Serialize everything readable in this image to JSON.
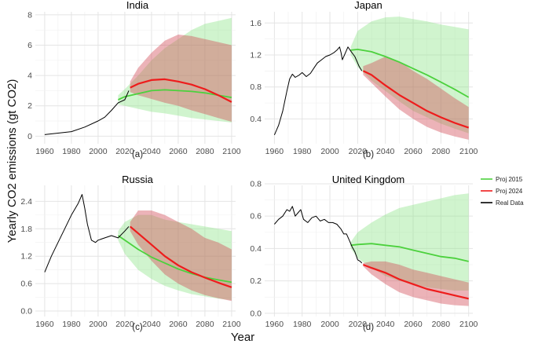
{
  "figure": {
    "ylabel": "Yearly CO2 emissions (gt CO2)",
    "xlabel": "Year",
    "legend": [
      {
        "label": "Proj 2015",
        "color": "#4cd13d"
      },
      {
        "label": "Proj 2024",
        "color": "#ee1c1c"
      },
      {
        "label": "Real Data",
        "color": "#000000"
      }
    ],
    "colors": {
      "band2015": "#cdf2c8",
      "band2024": "#b07a66",
      "band2024_only": "#f2aab2",
      "grid": "#e4e4e4"
    }
  },
  "chart_data": [
    {
      "type": "line",
      "title": "India",
      "caption": "(a)",
      "xlim": [
        1953,
        2103
      ],
      "ylim": [
        -0.5,
        8.2
      ],
      "xticks": [
        "1960",
        "1980",
        "2000",
        "2020",
        "2040",
        "2060",
        "2080",
        "2100"
      ],
      "yticks": [
        "0",
        "2",
        "4",
        "6",
        "8"
      ],
      "series": [
        {
          "name": "Real Data",
          "x": [
            1960,
            1970,
            1980,
            1990,
            2000,
            2005,
            2010,
            2015,
            2020,
            2023
          ],
          "y": [
            0.1,
            0.2,
            0.3,
            0.6,
            1.0,
            1.25,
            1.7,
            2.2,
            2.4,
            3.0
          ]
        },
        {
          "name": "Proj 2015",
          "x": [
            2015,
            2020,
            2030,
            2040,
            2050,
            2060,
            2070,
            2080,
            2090,
            2100
          ],
          "y": [
            2.4,
            2.6,
            2.8,
            3.0,
            3.05,
            3.0,
            2.95,
            2.85,
            2.7,
            2.55
          ],
          "lower": [
            2.1,
            2.0,
            1.8,
            1.6,
            1.5,
            1.35,
            1.2,
            1.1,
            1.0,
            0.9
          ],
          "upper": [
            2.7,
            3.1,
            4.0,
            5.0,
            5.8,
            6.4,
            7.0,
            7.4,
            7.6,
            7.8
          ]
        },
        {
          "name": "Proj 2024",
          "x": [
            2024,
            2030,
            2040,
            2050,
            2060,
            2070,
            2080,
            2090,
            2100
          ],
          "y": [
            3.2,
            3.45,
            3.7,
            3.75,
            3.6,
            3.4,
            3.1,
            2.7,
            2.25
          ],
          "lower": [
            2.9,
            2.7,
            2.45,
            2.2,
            2.0,
            1.7,
            1.45,
            1.2,
            0.95
          ],
          "upper": [
            3.6,
            4.5,
            5.5,
            6.3,
            6.7,
            6.6,
            6.4,
            6.2,
            6.0
          ]
        }
      ]
    },
    {
      "type": "line",
      "title": "Japan",
      "caption": "(b)",
      "xlim": [
        1953,
        2103
      ],
      "ylim": [
        0.09,
        1.74
      ],
      "xticks": [
        "1960",
        "1980",
        "2000",
        "2020",
        "2040",
        "2060",
        "2080",
        "2100"
      ],
      "yticks": [
        "0.4",
        "0.8",
        "1.2",
        "1.6"
      ],
      "series": [
        {
          "name": "Real Data",
          "x": [
            1960,
            1963,
            1966,
            1969,
            1971,
            1973,
            1975,
            1978,
            1980,
            1983,
            1986,
            1989,
            1991,
            1994,
            1997,
            2000,
            2003,
            2005,
            2007,
            2008,
            2009,
            2011,
            2013,
            2015,
            2018,
            2021,
            2023
          ],
          "y": [
            0.2,
            0.32,
            0.5,
            0.75,
            0.9,
            0.96,
            0.92,
            0.95,
            0.98,
            0.93,
            0.97,
            1.05,
            1.1,
            1.14,
            1.18,
            1.2,
            1.23,
            1.26,
            1.3,
            1.23,
            1.14,
            1.22,
            1.3,
            1.25,
            1.18,
            1.06,
            1.0
          ]
        },
        {
          "name": "Proj 2015",
          "x": [
            2015,
            2020,
            2030,
            2040,
            2050,
            2060,
            2070,
            2080,
            2090,
            2100
          ],
          "y": [
            1.26,
            1.27,
            1.24,
            1.18,
            1.11,
            1.03,
            0.95,
            0.86,
            0.77,
            0.67
          ],
          "lower": [
            1.2,
            1.05,
            0.88,
            0.75,
            0.62,
            0.5,
            0.42,
            0.34,
            0.28,
            0.22
          ],
          "upper": [
            1.3,
            1.5,
            1.62,
            1.67,
            1.68,
            1.65,
            1.62,
            1.58,
            1.55,
            1.52
          ]
        },
        {
          "name": "Proj 2024",
          "x": [
            2024,
            2030,
            2040,
            2050,
            2060,
            2070,
            2080,
            2090,
            2100
          ],
          "y": [
            1.0,
            0.95,
            0.82,
            0.7,
            0.6,
            0.5,
            0.42,
            0.35,
            0.29
          ],
          "lower": [
            0.95,
            0.85,
            0.68,
            0.52,
            0.4,
            0.3,
            0.23,
            0.18,
            0.14
          ],
          "upper": [
            1.06,
            1.1,
            1.18,
            1.12,
            1.0,
            0.9,
            0.78,
            0.66,
            0.55
          ]
        }
      ]
    },
    {
      "type": "line",
      "title": "Russia",
      "caption": "(c)",
      "xlim": [
        1953,
        2103
      ],
      "ylim": [
        -0.12,
        2.75
      ],
      "xticks": [
        "1960",
        "1980",
        "2000",
        "2020",
        "2040",
        "2060",
        "2080",
        "2100"
      ],
      "yticks": [
        "0.0",
        "0.6",
        "1.2",
        "1.8",
        "2.4"
      ],
      "series": [
        {
          "name": "Real Data",
          "x": [
            1960,
            1965,
            1970,
            1975,
            1980,
            1985,
            1988,
            1990,
            1992,
            1995,
            1998,
            2000,
            2005,
            2010,
            2015,
            2020,
            2023
          ],
          "y": [
            0.85,
            1.2,
            1.5,
            1.8,
            2.1,
            2.35,
            2.55,
            2.25,
            1.9,
            1.55,
            1.5,
            1.55,
            1.6,
            1.65,
            1.6,
            1.75,
            1.85
          ]
        },
        {
          "name": "Proj 2015",
          "x": [
            2015,
            2020,
            2030,
            2040,
            2050,
            2060,
            2070,
            2080,
            2090,
            2100
          ],
          "y": [
            1.65,
            1.55,
            1.35,
            1.18,
            1.05,
            0.92,
            0.82,
            0.74,
            0.68,
            0.63
          ],
          "lower": [
            1.55,
            1.25,
            0.9,
            0.7,
            0.55,
            0.45,
            0.37,
            0.32,
            0.27,
            0.24
          ],
          "upper": [
            1.75,
            1.95,
            2.1,
            2.1,
            2.0,
            1.95,
            1.9,
            1.85,
            1.8,
            1.75
          ]
        },
        {
          "name": "Proj 2024",
          "x": [
            2024,
            2030,
            2040,
            2050,
            2060,
            2070,
            2080,
            2090,
            2100
          ],
          "y": [
            1.85,
            1.7,
            1.45,
            1.2,
            1.0,
            0.85,
            0.73,
            0.62,
            0.52
          ],
          "lower": [
            1.75,
            1.45,
            1.1,
            0.8,
            0.6,
            0.45,
            0.35,
            0.28,
            0.22
          ],
          "upper": [
            1.95,
            2.2,
            2.2,
            2.1,
            1.95,
            1.8,
            1.6,
            1.5,
            1.35
          ]
        }
      ]
    },
    {
      "type": "line",
      "title": "United Kingdom",
      "caption": "(d)",
      "xlim": [
        1953,
        2103
      ],
      "ylim": [
        -0.02,
        0.79
      ],
      "xticks": [
        "1960",
        "1980",
        "2000",
        "2020",
        "2040",
        "2060",
        "2080",
        "2100"
      ],
      "yticks": [
        "0.0",
        "0.2",
        "0.4",
        "0.6",
        "0.8"
      ],
      "series": [
        {
          "name": "Real Data",
          "x": [
            1960,
            1963,
            1966,
            1969,
            1971,
            1973,
            1975,
            1977,
            1979,
            1981,
            1984,
            1987,
            1990,
            1993,
            1996,
            1999,
            2002,
            2005,
            2008,
            2010,
            2012,
            2014,
            2016,
            2018,
            2020,
            2022,
            2023
          ],
          "y": [
            0.55,
            0.58,
            0.6,
            0.64,
            0.63,
            0.66,
            0.6,
            0.62,
            0.64,
            0.58,
            0.56,
            0.59,
            0.6,
            0.57,
            0.58,
            0.56,
            0.56,
            0.55,
            0.52,
            0.49,
            0.49,
            0.45,
            0.41,
            0.38,
            0.33,
            0.32,
            0.31
          ]
        },
        {
          "name": "Proj 2015",
          "x": [
            2015,
            2020,
            2030,
            2040,
            2050,
            2060,
            2070,
            2080,
            2090,
            2100
          ],
          "y": [
            0.42,
            0.425,
            0.43,
            0.42,
            0.41,
            0.39,
            0.37,
            0.35,
            0.34,
            0.32
          ],
          "lower": [
            0.4,
            0.34,
            0.28,
            0.23,
            0.2,
            0.18,
            0.16,
            0.15,
            0.14,
            0.14
          ],
          "upper": [
            0.44,
            0.5,
            0.56,
            0.61,
            0.65,
            0.67,
            0.69,
            0.71,
            0.73,
            0.74
          ]
        },
        {
          "name": "Proj 2024",
          "x": [
            2024,
            2030,
            2040,
            2050,
            2060,
            2070,
            2080,
            2090,
            2100
          ],
          "y": [
            0.3,
            0.28,
            0.25,
            0.21,
            0.18,
            0.15,
            0.13,
            0.11,
            0.09
          ],
          "lower": [
            0.29,
            0.24,
            0.18,
            0.13,
            0.1,
            0.08,
            0.06,
            0.05,
            0.045
          ],
          "upper": [
            0.31,
            0.32,
            0.32,
            0.3,
            0.27,
            0.25,
            0.23,
            0.21,
            0.19
          ]
        }
      ]
    }
  ]
}
